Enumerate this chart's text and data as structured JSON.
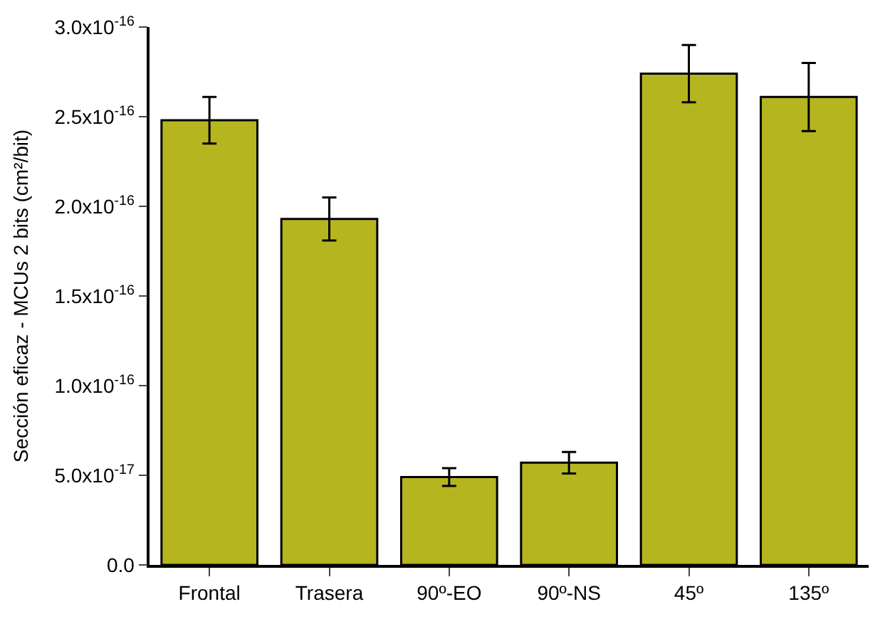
{
  "chart_data": {
    "type": "bar",
    "ylabel": "Sección eficaz - MCUs 2 bits (cm²/bit)",
    "categories": [
      "Frontal",
      "Trasera",
      "90º-EO",
      "90º-NS",
      "45º",
      "135º"
    ],
    "values": [
      2.48e-16,
      1.93e-16,
      4.9e-17,
      5.7e-17,
      2.74e-16,
      2.61e-16
    ],
    "errors": [
      1.3e-17,
      1.2e-17,
      5e-18,
      6e-18,
      1.6e-17,
      1.9e-17
    ],
    "color": "#b5b520",
    "ylim": [
      0,
      3e-16
    ],
    "yticks": [
      {
        "value": 0,
        "label": "0.0"
      },
      {
        "value": 5e-17,
        "label": "5.0x10$^{-17}$"
      },
      {
        "value": 1e-16,
        "label": "1.0x10$^{-16}$"
      },
      {
        "value": 1.5e-16,
        "label": "1.5x10$^{-16}$"
      },
      {
        "value": 2e-16,
        "label": "2.0x10$^{-16}$"
      },
      {
        "value": 2.5e-16,
        "label": "2.5x10$^{-16}$"
      },
      {
        "value": 3e-16,
        "label": "3.0x10$^{-16}$"
      }
    ]
  }
}
